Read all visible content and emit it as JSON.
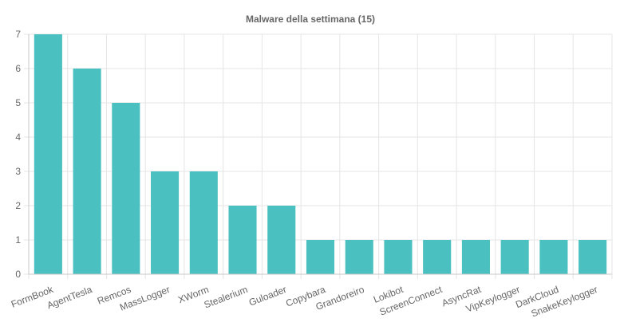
{
  "chart_data": {
    "type": "bar",
    "title": "Malware della settimana (15)",
    "xlabel": "",
    "ylabel": "",
    "categories": [
      "FormBook",
      "AgentTesla",
      "Remcos",
      "MassLogger",
      "XWorm",
      "Stealerium",
      "Guloader",
      "Copybara",
      "Grandoreiro",
      "Lokibot",
      "ScreenConnect",
      "AsyncRat",
      "VipKeylogger",
      "DarkCloud",
      "SnakeKeylogger"
    ],
    "values": [
      7,
      6,
      5,
      3,
      3,
      2,
      2,
      1,
      1,
      1,
      1,
      1,
      1,
      1,
      1
    ],
    "ylim": [
      0,
      7
    ],
    "yticks": [
      "0",
      "1",
      "2",
      "3",
      "4",
      "5",
      "6",
      "7"
    ],
    "grid": true,
    "legend": "none",
    "colors": {
      "bar": "#4bc0c0",
      "grid": "#e5e5e5",
      "text": "#666666"
    }
  }
}
